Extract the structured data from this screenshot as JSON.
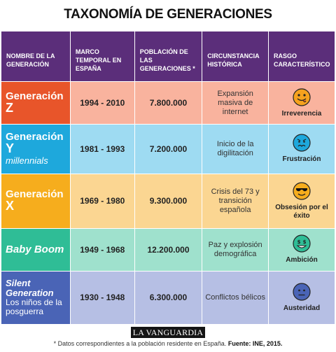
{
  "title": "TAXONOMÍA DE GENERACIONES",
  "headers": [
    "NOMBRE DE LA GENERACIÓN",
    "MARCO TEMPORAL EN ESPAÑA",
    "POBLACIÓN DE LAS GENERACIONES *",
    "CIRCUNSTANCIA HISTÓRICA",
    "RASGO CARACTERÍSTICO"
  ],
  "rows": [
    {
      "name": "Generación",
      "name_letter": "Z",
      "subtitle": "",
      "years": "1994 - 2010",
      "population": "7.800.000",
      "circumstance": "Expansión masiva de internet",
      "trait": "Irreverencia",
      "icon": "tongue-out-face-icon",
      "color": "#e8552a"
    },
    {
      "name": "Generación",
      "name_letter": "Y",
      "subtitle": "millennials",
      "years": "1981 - 1993",
      "population": "7.200.000",
      "circumstance": "Inicio de la digilitación",
      "trait": "Frustración",
      "icon": "frustrated-face-icon",
      "color": "#1ea8dc"
    },
    {
      "name": "Generación",
      "name_letter": "X",
      "subtitle": "",
      "years": "1969 - 1980",
      "population": "9.300.000",
      "circumstance": "Crisis del 73 y transición española",
      "trait": "Obsesión por el éxito",
      "icon": "sunglasses-face-icon",
      "color": "#f6ad1d"
    },
    {
      "name": "Baby Boom",
      "name_letter": "",
      "subtitle": "",
      "years": "1949 - 1968",
      "population": "12.200.000",
      "circumstance": "Paz y explosión demográfica",
      "trait": "Ambición",
      "icon": "money-eyes-face-icon",
      "color": "#2fbd96"
    },
    {
      "name": "Silent Generation",
      "name_letter": "",
      "subtitle": "Los niños de la posguerra",
      "years": "1930 - 1948",
      "population": "6.300.000",
      "circumstance": "Conflictos bélicos",
      "trait": "Austeridad",
      "icon": "neutral-face-icon",
      "color": "#4a64b6"
    }
  ],
  "logo": "LA VANGUARDIA",
  "footnote": "* Datos correspondientes a la población residente en España.",
  "source": "Fuente: INE, 2015."
}
